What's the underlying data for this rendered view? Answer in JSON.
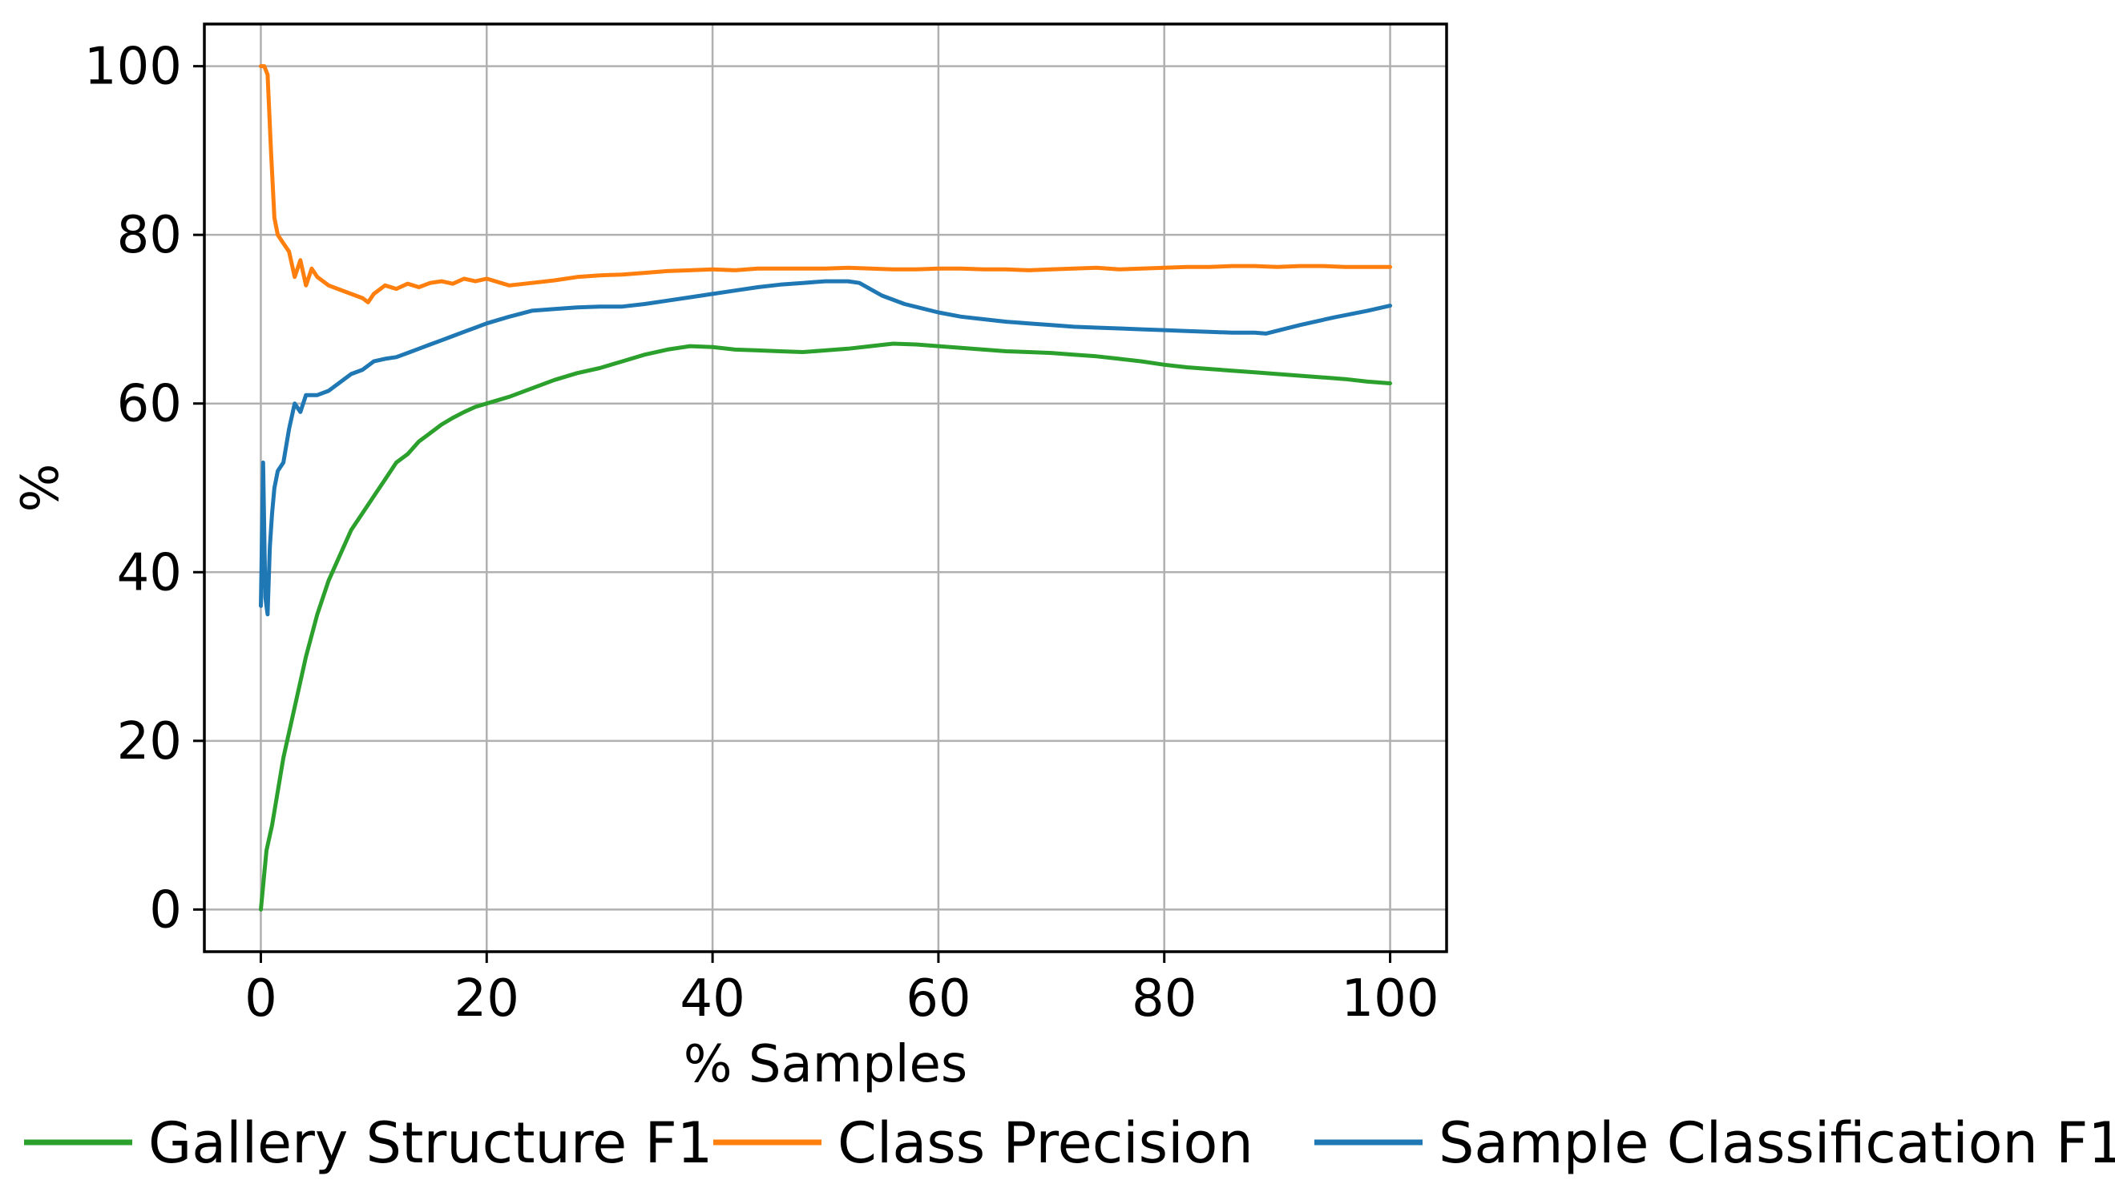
{
  "chart_data": {
    "type": "line",
    "title": "",
    "xlabel": "% Samples",
    "ylabel": "%",
    "xlim": [
      -5,
      105
    ],
    "ylim": [
      -5,
      105
    ],
    "xticks": [
      0,
      20,
      40,
      60,
      80,
      100
    ],
    "yticks": [
      0,
      20,
      40,
      60,
      80,
      100
    ],
    "xtick_labels": [
      "0",
      "20",
      "40",
      "60",
      "80",
      "100"
    ],
    "ytick_labels": [
      "0",
      "20",
      "40",
      "60",
      "80",
      "100"
    ],
    "grid": true,
    "legend_placement": "bottom",
    "series": [
      {
        "name": "Gallery Structure F1",
        "color": "#2ca02c",
        "x": [
          0,
          0.5,
          1,
          2,
          3,
          4,
          5,
          6,
          7,
          8,
          9,
          10,
          11,
          12,
          13,
          14,
          15,
          16,
          17,
          18,
          19,
          20,
          22,
          24,
          26,
          28,
          30,
          32,
          34,
          36,
          38,
          40,
          42,
          44,
          46,
          48,
          50,
          52,
          54,
          56,
          58,
          60,
          62,
          64,
          66,
          68,
          70,
          72,
          74,
          76,
          78,
          80,
          82,
          84,
          86,
          88,
          90,
          92,
          94,
          96,
          98,
          100
        ],
        "y": [
          0,
          7,
          10,
          18,
          24,
          30,
          35,
          39,
          42,
          45,
          47,
          49,
          51,
          53,
          54,
          55.5,
          56.5,
          57.5,
          58.3,
          59,
          59.6,
          60,
          60.8,
          61.8,
          62.8,
          63.6,
          64.2,
          65,
          65.8,
          66.4,
          66.8,
          66.7,
          66.4,
          66.3,
          66.2,
          66.1,
          66.3,
          66.5,
          66.8,
          67.1,
          67,
          66.8,
          66.6,
          66.4,
          66.2,
          66.1,
          66,
          65.8,
          65.6,
          65.3,
          65,
          64.6,
          64.3,
          64.1,
          63.9,
          63.7,
          63.5,
          63.3,
          63.1,
          62.9,
          62.6,
          62.4
        ]
      },
      {
        "name": "Class Precision",
        "color": "#ff7f0e",
        "x": [
          0,
          0.3,
          0.6,
          0.9,
          1.2,
          1.5,
          2,
          2.5,
          3,
          3.5,
          4,
          4.5,
          5,
          6,
          7,
          8,
          9,
          9.5,
          10,
          11,
          12,
          13,
          14,
          15,
          16,
          17,
          18,
          19,
          20,
          22,
          24,
          26,
          28,
          30,
          32,
          34,
          36,
          38,
          40,
          42,
          44,
          46,
          48,
          50,
          52,
          54,
          56,
          58,
          60,
          62,
          64,
          66,
          68,
          70,
          72,
          74,
          76,
          78,
          80,
          82,
          84,
          86,
          88,
          90,
          92,
          94,
          96,
          98,
          100
        ],
        "y": [
          100,
          100,
          99,
          90,
          82,
          80,
          79,
          78,
          75,
          77,
          74,
          76,
          75,
          74,
          73.5,
          73,
          72.5,
          72,
          73,
          74,
          73.6,
          74.2,
          73.8,
          74.3,
          74.5,
          74.2,
          74.8,
          74.5,
          74.8,
          74,
          74.3,
          74.6,
          75,
          75.2,
          75.3,
          75.5,
          75.7,
          75.8,
          75.9,
          75.8,
          76,
          76,
          76,
          76,
          76.1,
          76,
          75.9,
          75.9,
          76,
          76,
          75.9,
          75.9,
          75.8,
          75.9,
          76,
          76.1,
          75.9,
          76,
          76.1,
          76.2,
          76.2,
          76.3,
          76.3,
          76.2,
          76.3,
          76.3,
          76.2,
          76.2,
          76.2
        ]
      },
      {
        "name": "Sample Classification F1",
        "color": "#1f77b4",
        "x": [
          0,
          0.2,
          0.4,
          0.6,
          0.8,
          1,
          1.2,
          1.5,
          2,
          2.5,
          3,
          3.5,
          4,
          5,
          6,
          7,
          8,
          9,
          10,
          11,
          12,
          13,
          14,
          15,
          16,
          17,
          18,
          19,
          20,
          22,
          24,
          26,
          28,
          30,
          32,
          34,
          36,
          38,
          40,
          42,
          44,
          46,
          48,
          50,
          52,
          53,
          55,
          57,
          60,
          62,
          64,
          66,
          68,
          70,
          72,
          74,
          76,
          78,
          80,
          82,
          84,
          86,
          88,
          89,
          92,
          95,
          98,
          100
        ],
        "y": [
          36,
          53,
          37,
          35,
          43,
          47,
          50,
          52,
          53,
          57,
          60,
          59,
          61,
          61,
          61.5,
          62.5,
          63.5,
          64,
          65,
          65.3,
          65.5,
          66,
          66.5,
          67,
          67.5,
          68,
          68.5,
          69,
          69.5,
          70.3,
          71,
          71.2,
          71.4,
          71.5,
          71.5,
          71.8,
          72.2,
          72.6,
          73,
          73.4,
          73.8,
          74.1,
          74.3,
          74.5,
          74.5,
          74.3,
          72.8,
          71.8,
          70.8,
          70.3,
          70,
          69.7,
          69.5,
          69.3,
          69.1,
          69,
          68.9,
          68.8,
          68.7,
          68.6,
          68.5,
          68.4,
          68.4,
          68.3,
          69.3,
          70.2,
          71,
          71.6
        ]
      }
    ]
  }
}
